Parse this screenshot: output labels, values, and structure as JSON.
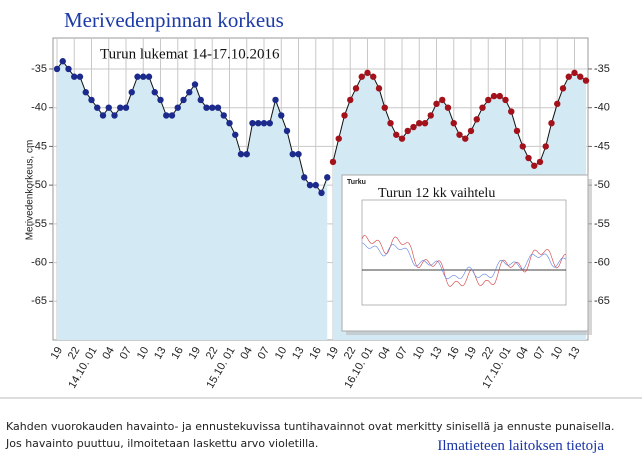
{
  "chart_data": {
    "type": "line",
    "title": "Merivedenpinnan korkeus",
    "subtitle": "Turun lukemat 14-17.10.2016",
    "y_label": "Merivedenkorkeus, cm",
    "categories": [
      "19",
      null,
      null,
      "22",
      null,
      null,
      "14.10. 01",
      null,
      null,
      "04",
      null,
      null,
      "07",
      null,
      null,
      "10",
      null,
      null,
      "13",
      null,
      null,
      "16",
      null,
      null,
      "19",
      null,
      null,
      "22",
      null,
      null,
      "15.10. 01",
      null,
      null,
      "04",
      null,
      null,
      "07",
      null,
      null,
      "10",
      null,
      null,
      "13",
      null,
      null,
      "16",
      null,
      null,
      "19",
      null,
      null,
      "22",
      null,
      null,
      "16.10. 01",
      null,
      null,
      "04",
      null,
      null,
      "07",
      null,
      null,
      "10",
      null,
      null,
      "13",
      null,
      null,
      "16",
      null,
      null,
      "19",
      null,
      null,
      "22",
      null,
      null,
      "17.10. 01",
      null,
      null,
      "04",
      null,
      null,
      "07",
      null,
      null,
      "10",
      null,
      null,
      "13",
      null,
      null
    ],
    "series": [
      {
        "color": "#1c2a8c",
        "values": [
          -35,
          -34,
          -35,
          -36,
          -36,
          -38,
          -39,
          -40,
          -41,
          -40,
          -41,
          -40,
          -40,
          -38,
          -36,
          -36,
          -36,
          -38,
          -39,
          -41,
          -41,
          -40,
          -39,
          -38,
          -37,
          -39,
          -40,
          -40,
          -40,
          -41,
          -42,
          -43.5,
          -46,
          -46,
          -42,
          -42,
          -42,
          -42,
          -39,
          -41,
          -43,
          -46,
          -46,
          -49,
          -50,
          -50,
          -51,
          -49,
          null,
          null,
          null,
          null,
          null,
          null,
          null,
          null,
          null,
          null,
          null,
          null,
          null,
          null,
          null,
          null,
          null,
          null,
          null,
          null,
          null,
          null,
          null,
          null,
          null,
          null,
          null,
          null,
          null,
          null,
          null,
          null,
          null,
          null,
          null,
          null,
          null,
          null,
          null,
          null,
          null,
          null,
          null,
          null,
          null
        ]
      },
      {
        "color": "#a3111a",
        "values": [
          null,
          null,
          null,
          null,
          null,
          null,
          null,
          null,
          null,
          null,
          null,
          null,
          null,
          null,
          null,
          null,
          null,
          null,
          null,
          null,
          null,
          null,
          null,
          null,
          null,
          null,
          null,
          null,
          null,
          null,
          null,
          null,
          null,
          null,
          null,
          null,
          null,
          null,
          null,
          null,
          null,
          null,
          null,
          null,
          null,
          null,
          null,
          null,
          -47,
          -44,
          -41,
          -39,
          -37.5,
          -36,
          -35.5,
          -36,
          -37.5,
          -40,
          -42,
          -43.5,
          -44,
          -43,
          -42.5,
          -42,
          -42,
          -41,
          -39.5,
          -39,
          -40,
          -42,
          -43.5,
          -44,
          -43,
          -41.5,
          -40,
          -39,
          -38.5,
          -38.5,
          -39,
          -40.5,
          -43,
          -45,
          -46.5,
          -47.5,
          -47,
          -45,
          -42,
          -39.5,
          -37.5,
          -36,
          -35.5,
          -36,
          -36.5
        ]
      }
    ],
    "area_color": "#d3e9f3",
    "ylim": [
      -70,
      -31
    ],
    "yticks": [
      -35,
      -40,
      -45,
      -50,
      -55,
      -60,
      -65
    ],
    "grid": true,
    "inset": {
      "place": "Turku",
      "title": "Turun 12 kk vaihtelu"
    },
    "footer": "Kahden vuorokauden havainto- ja ennustekuvissa tuntihavainnot ovat merkitty sinisellä ja ennuste punaisella. Jos havainto puuttuu, ilmoitetaan laskettu arvo violetilla.",
    "link": "Ilmatieteen laitoksen tietoja"
  }
}
